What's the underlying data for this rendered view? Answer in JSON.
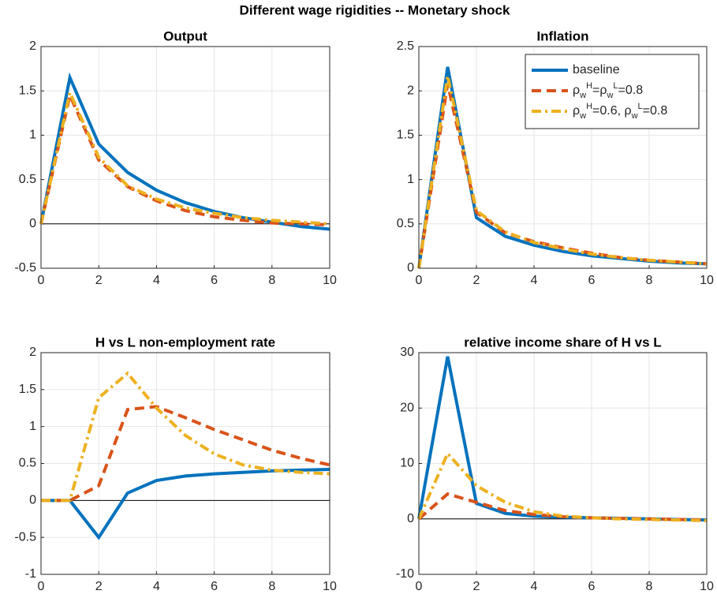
{
  "title": "Different wage rigidities -- Monetary shock",
  "chart_data": [
    {
      "type": "line",
      "title": "Output",
      "x": [
        0,
        1,
        2,
        3,
        4,
        5,
        6,
        7,
        8,
        9,
        10
      ],
      "xlim": [
        0,
        10
      ],
      "xticks": [
        0,
        2,
        4,
        6,
        8,
        10
      ],
      "ylim": [
        -0.5,
        2
      ],
      "yticks": [
        -0.5,
        0,
        0.5,
        1,
        1.5,
        2
      ],
      "grid": true,
      "series": [
        {
          "color": "#0072BD",
          "line_style": "solid",
          "values": [
            0,
            1.65,
            0.9,
            0.58,
            0.38,
            0.24,
            0.14,
            0.07,
            0.02,
            -0.03,
            -0.06
          ]
        },
        {
          "color": "#D95319",
          "line_style": "dashed",
          "values": [
            0,
            1.45,
            0.72,
            0.42,
            0.26,
            0.15,
            0.08,
            0.04,
            0.01,
            0,
            -0.01
          ]
        },
        {
          "color": "#EDB120",
          "line_style": "dashdot",
          "values": [
            0,
            1.48,
            0.75,
            0.43,
            0.28,
            0.18,
            0.12,
            0.07,
            0.04,
            0.02,
            0
          ]
        }
      ]
    },
    {
      "type": "line",
      "title": "Inflation",
      "x": [
        0,
        1,
        2,
        3,
        4,
        5,
        6,
        7,
        8,
        9,
        10
      ],
      "xlim": [
        0,
        10
      ],
      "xticks": [
        0,
        2,
        4,
        6,
        8,
        10
      ],
      "ylim": [
        0,
        2.5
      ],
      "yticks": [
        0,
        0.5,
        1,
        1.5,
        2,
        2.5
      ],
      "grid": true,
      "legend": "top-right",
      "series": [
        {
          "name": "baseline",
          "color": "#0072BD",
          "line_style": "solid",
          "values": [
            0,
            2.27,
            0.57,
            0.36,
            0.26,
            0.19,
            0.14,
            0.11,
            0.08,
            0.06,
            0.05
          ]
        },
        {
          "name": "ρ_w^H=ρ_w^L=0.8",
          "color": "#D95319",
          "line_style": "dashed",
          "values": [
            0,
            2.08,
            0.63,
            0.4,
            0.3,
            0.23,
            0.17,
            0.12,
            0.09,
            0.07,
            0.05
          ]
        },
        {
          "name": "ρ_w^H=0.6, ρ_w^L=0.8",
          "color": "#EDB120",
          "line_style": "dashdot",
          "values": [
            0,
            2.17,
            0.65,
            0.41,
            0.29,
            0.22,
            0.16,
            0.12,
            0.09,
            0.07,
            0.05
          ]
        }
      ]
    },
    {
      "type": "line",
      "title": "H vs L non-employment rate",
      "x": [
        0,
        1,
        2,
        3,
        4,
        5,
        6,
        7,
        8,
        9,
        10
      ],
      "xlim": [
        0,
        10
      ],
      "xticks": [
        0,
        2,
        4,
        6,
        8,
        10
      ],
      "ylim": [
        -1,
        2
      ],
      "yticks": [
        -1,
        -0.5,
        0,
        0.5,
        1,
        1.5,
        2
      ],
      "grid": true,
      "series": [
        {
          "color": "#0072BD",
          "line_style": "solid",
          "values": [
            0,
            0,
            -0.5,
            0.1,
            0.27,
            0.33,
            0.36,
            0.38,
            0.4,
            0.41,
            0.42
          ]
        },
        {
          "color": "#D95319",
          "line_style": "dashed",
          "values": [
            0,
            0,
            0.2,
            1.23,
            1.27,
            1.12,
            0.96,
            0.82,
            0.68,
            0.57,
            0.48
          ]
        },
        {
          "color": "#EDB120",
          "line_style": "dashdot",
          "values": [
            0,
            0,
            1.39,
            1.72,
            1.25,
            0.88,
            0.63,
            0.48,
            0.41,
            0.38,
            0.36
          ]
        }
      ]
    },
    {
      "type": "line",
      "title": "relative income share of H vs L",
      "x": [
        0,
        1,
        2,
        3,
        4,
        5,
        6,
        7,
        8,
        9,
        10
      ],
      "xlim": [
        0,
        10
      ],
      "xticks": [
        0,
        2,
        4,
        6,
        8,
        10
      ],
      "ylim": [
        -10,
        30
      ],
      "yticks": [
        -10,
        0,
        10,
        20,
        30
      ],
      "grid": true,
      "series": [
        {
          "color": "#0072BD",
          "line_style": "solid",
          "values": [
            0,
            29.3,
            2.8,
            1,
            0.5,
            0.3,
            0.2,
            0.1,
            0,
            -0.1,
            -0.2
          ]
        },
        {
          "color": "#D95319",
          "line_style": "dashed",
          "values": [
            0,
            4.5,
            3,
            1.5,
            0.8,
            0.4,
            0.2,
            0.1,
            0,
            -0.1,
            -0.2
          ]
        },
        {
          "color": "#EDB120",
          "line_style": "dashdot",
          "values": [
            0,
            11.8,
            6,
            3,
            1.3,
            0.5,
            0.2,
            0,
            -0.1,
            -0.2,
            -0.3
          ]
        }
      ]
    }
  ]
}
